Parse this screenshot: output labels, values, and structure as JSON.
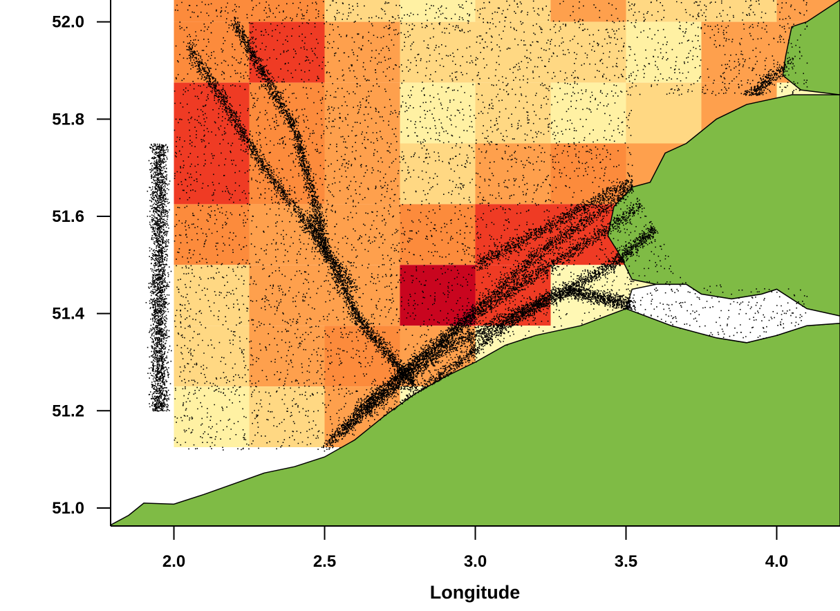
{
  "chart_data": {
    "type": "heatmap",
    "title": "",
    "xlabel": "Longitude",
    "ylabel": "",
    "xlim": [
      1.79,
      4.21
    ],
    "ylim": [
      50.963,
      52.045
    ],
    "x_ticks": [
      2.0,
      2.5,
      3.0,
      3.5,
      4.0
    ],
    "x_tick_labels": [
      "2.0",
      "2.5",
      "3.0",
      "3.5",
      "4.0"
    ],
    "y_ticks": [
      51.0,
      51.2,
      51.4,
      51.6,
      51.8,
      52.0
    ],
    "y_tick_labels": [
      "51.0",
      "51.2",
      "51.4",
      "51.6",
      "51.8",
      "52.0"
    ],
    "grid": false,
    "legend": "none",
    "grid_cells": {
      "lon_edges": [
        2.0,
        2.25,
        2.5,
        2.75,
        3.0,
        3.25,
        3.5,
        3.75,
        4.0,
        4.25
      ],
      "lat_edges": [
        51.125,
        51.25,
        51.375,
        51.5,
        51.625,
        51.75,
        51.875,
        52.0,
        52.125
      ],
      "intensity_rows_from_top": [
        [
          4,
          4,
          2,
          1,
          2,
          3,
          2,
          2,
          3
        ],
        [
          4,
          5,
          3,
          2,
          2,
          2,
          1,
          3,
          3
        ],
        [
          5,
          4,
          3,
          1,
          2,
          1,
          2,
          3,
          0
        ],
        [
          5,
          4,
          3,
          2,
          3,
          4,
          3,
          0,
          0
        ],
        [
          4,
          3,
          3,
          4,
          5,
          5,
          3,
          0,
          0
        ],
        [
          2,
          3,
          3,
          6,
          5,
          0,
          0,
          0,
          0
        ],
        [
          2,
          3,
          4,
          3,
          0,
          0,
          0,
          0,
          0
        ],
        [
          1,
          2,
          3,
          0,
          0,
          0,
          0,
          0,
          0
        ]
      ]
    },
    "intensity_colors": [
      "#fff8b4",
      "#fff1a3",
      "#ffd883",
      "#fea04d",
      "#fc8b3c",
      "#ef3b24",
      "#c9051f"
    ],
    "land_color": "#7fbb45",
    "coast_outline_color": "#000000",
    "point_color": "#000000",
    "coastline": [
      [
        1.79,
        50.965
      ],
      [
        1.85,
        50.985
      ],
      [
        1.9,
        51.01
      ],
      [
        2.0,
        51.008
      ],
      [
        2.1,
        51.028
      ],
      [
        2.2,
        51.05
      ],
      [
        2.3,
        51.072
      ],
      [
        2.4,
        51.085
      ],
      [
        2.5,
        51.105
      ],
      [
        2.6,
        51.14
      ],
      [
        2.7,
        51.19
      ],
      [
        2.8,
        51.235
      ],
      [
        2.9,
        51.27
      ],
      [
        3.0,
        51.3
      ],
      [
        3.1,
        51.335
      ],
      [
        3.2,
        51.355
      ],
      [
        3.35,
        51.375
      ],
      [
        3.5,
        51.41
      ],
      [
        3.65,
        51.375
      ],
      [
        3.8,
        51.35
      ],
      [
        3.9,
        51.34
      ],
      [
        4.0,
        51.355
      ],
      [
        4.1,
        51.375
      ],
      [
        4.21,
        51.38
      ],
      [
        4.21,
        50.963
      ],
      [
        1.79,
        50.963
      ]
    ],
    "scheldt_estuary": [
      [
        3.5,
        51.41
      ],
      [
        3.52,
        51.45
      ],
      [
        3.6,
        51.46
      ],
      [
        3.7,
        51.46
      ],
      [
        3.75,
        51.44
      ],
      [
        3.85,
        51.43
      ],
      [
        3.95,
        51.44
      ],
      [
        4.0,
        51.45
      ],
      [
        4.1,
        51.41
      ],
      [
        4.21,
        51.395
      ],
      [
        4.21,
        51.38
      ],
      [
        4.1,
        51.375
      ],
      [
        4.0,
        51.355
      ],
      [
        3.9,
        51.34
      ],
      [
        3.8,
        51.35
      ],
      [
        3.65,
        51.375
      ]
    ],
    "walcheren_coast": [
      [
        3.48,
        51.52
      ],
      [
        3.44,
        51.56
      ],
      [
        3.46,
        51.62
      ],
      [
        3.52,
        51.66
      ],
      [
        3.58,
        51.67
      ],
      [
        3.63,
        51.73
      ],
      [
        3.7,
        51.75
      ],
      [
        3.8,
        51.8
      ],
      [
        3.9,
        51.83
      ],
      [
        4.05,
        51.85
      ],
      [
        4.21,
        51.85
      ],
      [
        4.21,
        51.395
      ],
      [
        4.1,
        51.41
      ],
      [
        4.0,
        51.45
      ],
      [
        3.95,
        51.44
      ],
      [
        3.85,
        51.43
      ],
      [
        3.75,
        51.44
      ],
      [
        3.7,
        51.46
      ],
      [
        3.6,
        51.46
      ],
      [
        3.52,
        51.47
      ]
    ],
    "north_land": [
      [
        4.05,
        51.99
      ],
      [
        4.1,
        52.0
      ],
      [
        4.21,
        52.045
      ],
      [
        4.21,
        51.85
      ],
      [
        4.08,
        51.86
      ],
      [
        4.02,
        51.89
      ],
      [
        4.03,
        51.93
      ]
    ],
    "ship_track_bands": [
      [
        [
          2.55,
          51.16
        ],
        [
          3.2,
          51.52
        ],
        [
          3.95,
          51.85
        ]
      ],
      [
        [
          2.6,
          51.2
        ],
        [
          3.0,
          51.4
        ],
        [
          3.5,
          51.6
        ],
        [
          4.0,
          51.9
        ]
      ],
      [
        [
          2.5,
          51.13
        ],
        [
          2.9,
          51.33
        ],
        [
          3.3,
          51.45
        ],
        [
          3.52,
          51.42
        ]
      ],
      [
        [
          2.7,
          51.18
        ],
        [
          3.1,
          51.38
        ],
        [
          3.45,
          51.5
        ],
        [
          3.7,
          51.63
        ]
      ],
      [
        [
          3.0,
          51.5
        ],
        [
          3.3,
          51.6
        ],
        [
          3.6,
          51.7
        ],
        [
          4.05,
          51.92
        ]
      ],
      [
        [
          2.45,
          51.6
        ],
        [
          2.6,
          51.4
        ],
        [
          2.8,
          51.25
        ]
      ],
      [
        [
          2.05,
          51.95
        ],
        [
          2.3,
          51.7
        ],
        [
          2.6,
          51.45
        ]
      ],
      [
        [
          2.2,
          52.0
        ],
        [
          2.4,
          51.78
        ],
        [
          2.5,
          51.55
        ]
      ]
    ]
  }
}
